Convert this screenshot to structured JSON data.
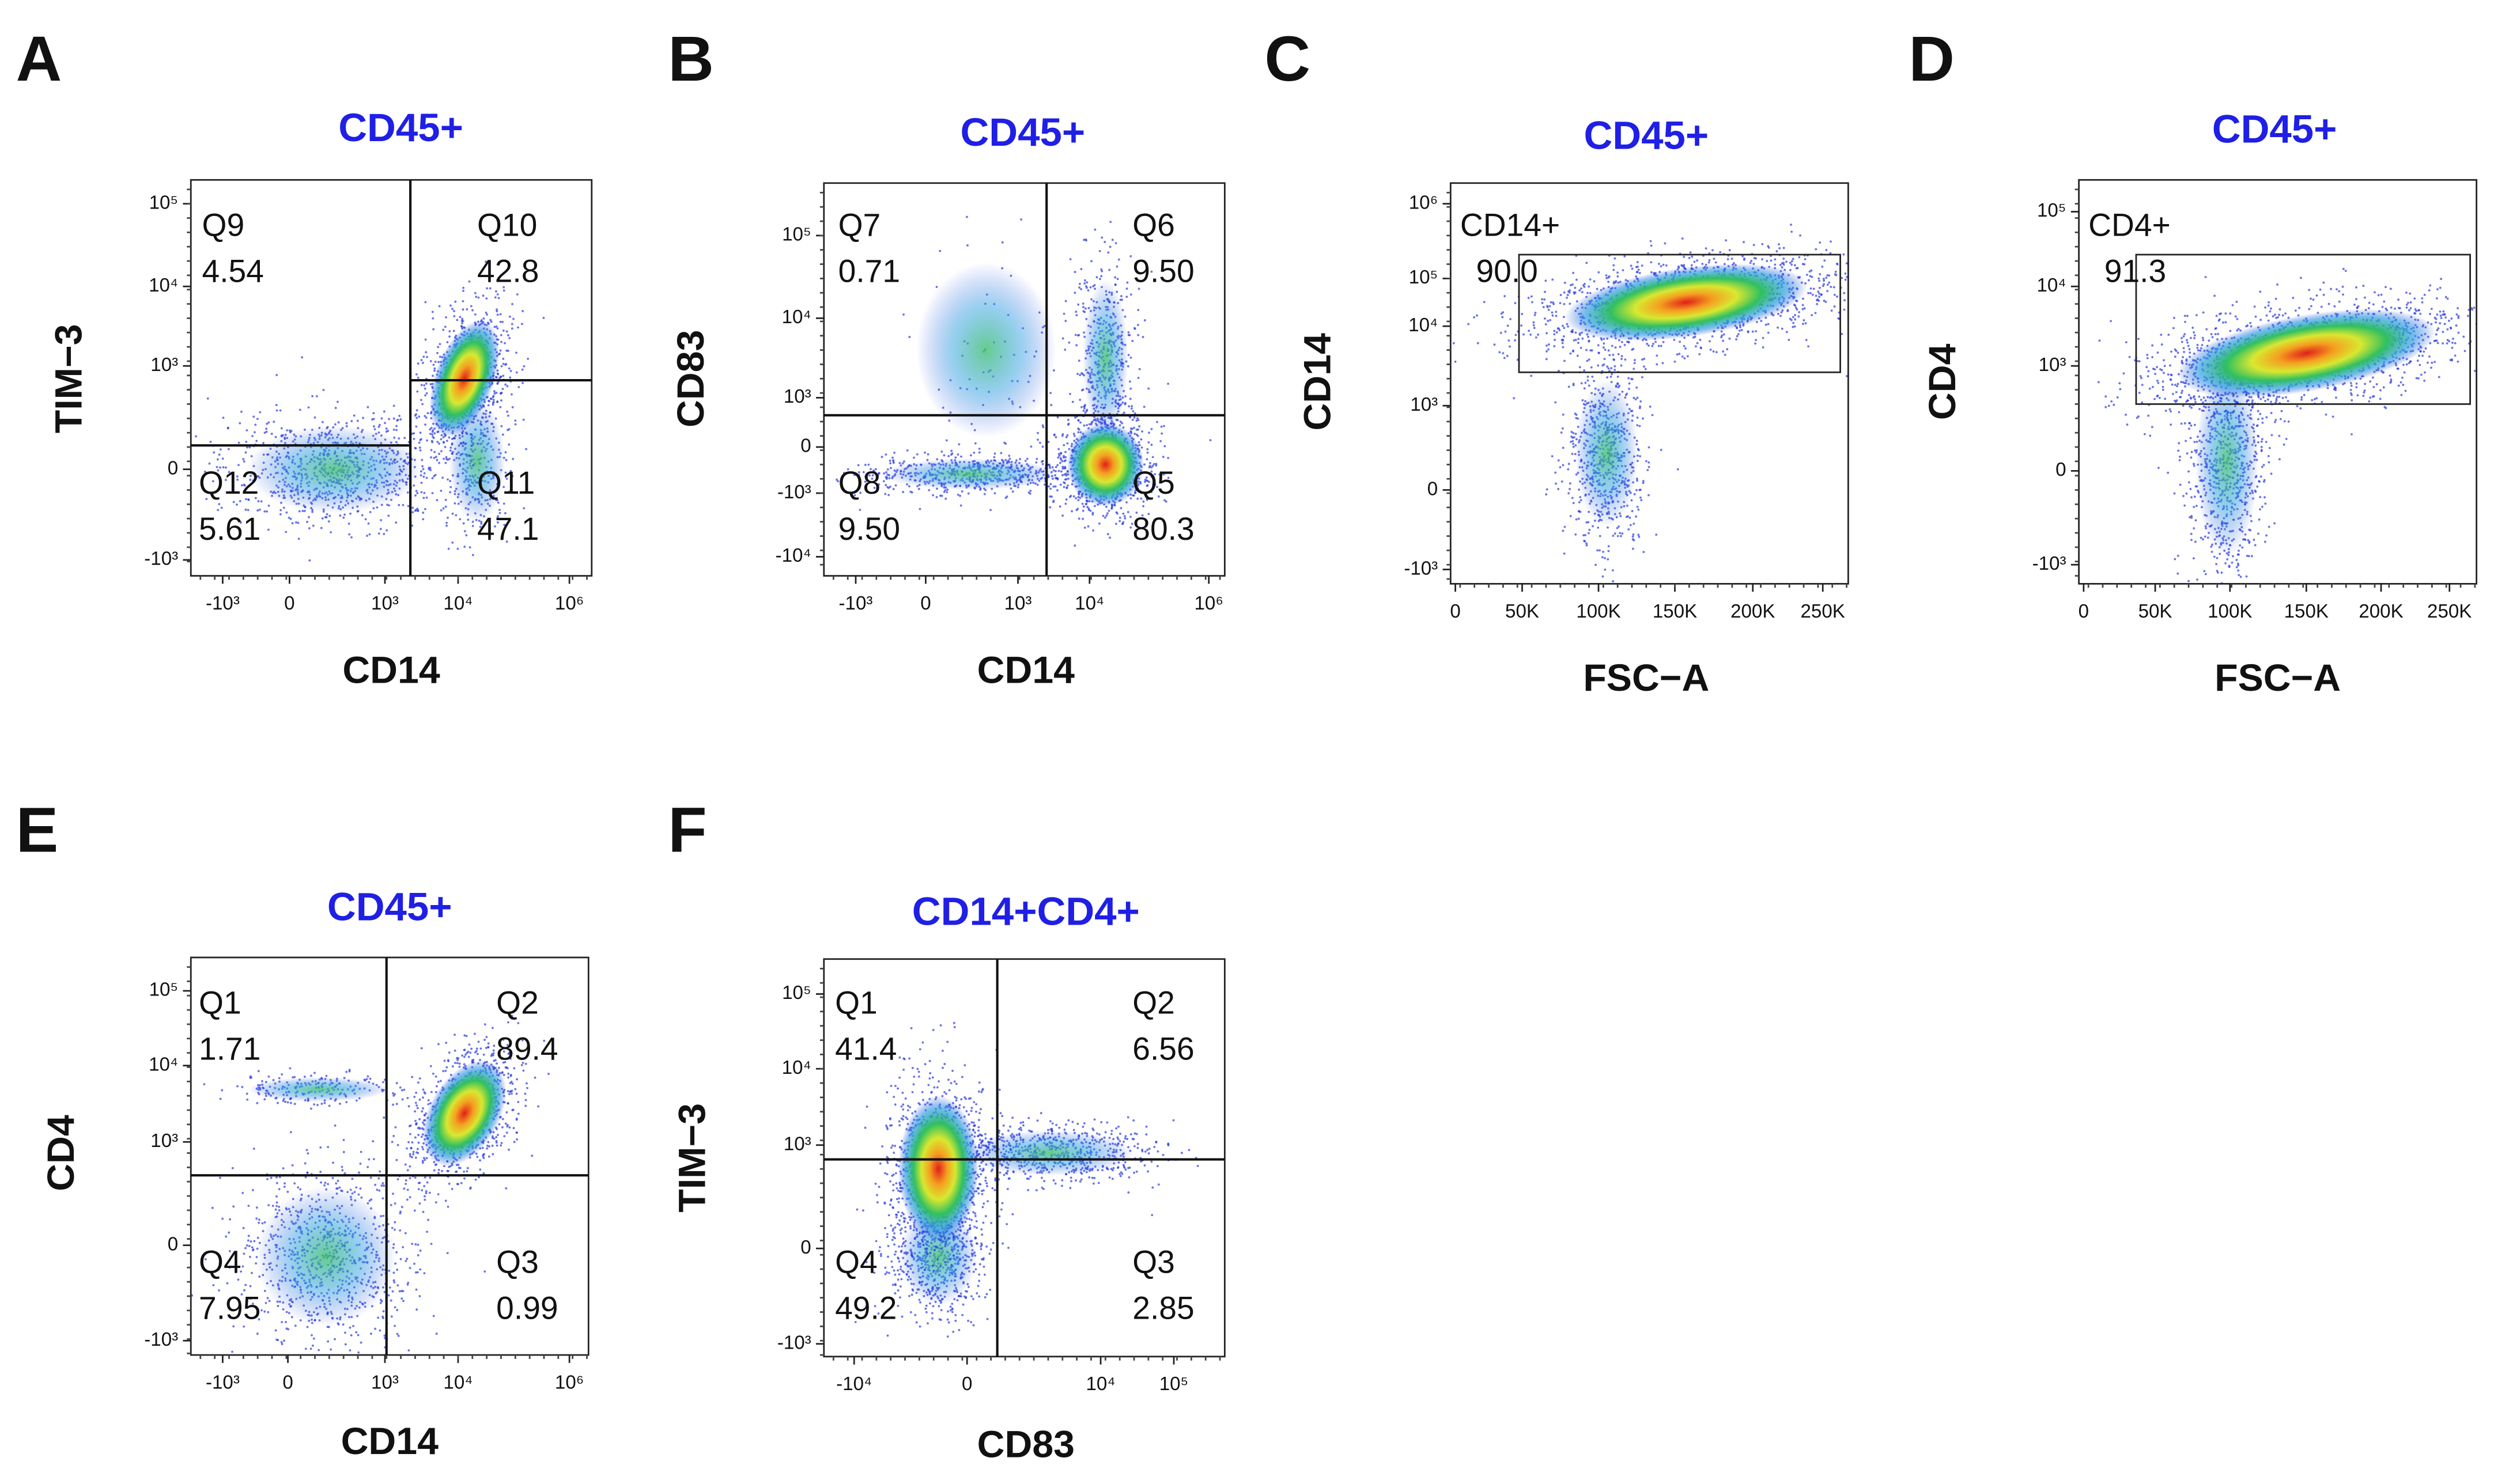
{
  "panels": [
    {
      "letter": "A",
      "title": "CD45+",
      "x_label": "CD14",
      "y_label": "TIM−3",
      "x_ticks": [
        "-10³",
        "0",
        "10³",
        "10⁴",
        "10⁶"
      ],
      "y_ticks": [
        "10⁵",
        "10⁴",
        "10³",
        "0",
        "-10³"
      ],
      "gates": [
        {
          "name": "Q9",
          "percent": "4.54"
        },
        {
          "name": "Q10",
          "percent": "42.8"
        },
        {
          "name": "Q12",
          "percent": "5.61"
        },
        {
          "name": "Q11",
          "percent": "47.1"
        }
      ]
    },
    {
      "letter": "B",
      "title": "CD45+",
      "x_label": "CD14",
      "y_label": "CD83",
      "x_ticks": [
        "-10³",
        "0",
        "10³",
        "10⁴",
        "10⁶"
      ],
      "y_ticks": [
        "10⁵",
        "10⁴",
        "10³",
        "0",
        "-10³",
        "-10⁴"
      ],
      "gates": [
        {
          "name": "Q7",
          "percent": "0.71"
        },
        {
          "name": "Q6",
          "percent": "9.50"
        },
        {
          "name": "Q8",
          "percent": "9.50"
        },
        {
          "name": "Q5",
          "percent": "80.3"
        }
      ]
    },
    {
      "letter": "C",
      "title": "CD45+",
      "x_label": "FSC−A",
      "y_label": "CD14",
      "x_ticks": [
        "0",
        "50K",
        "100K",
        "150K",
        "200K",
        "250K"
      ],
      "y_ticks": [
        "10⁶",
        "10⁵",
        "10⁴",
        "10³",
        "0",
        "-10³"
      ],
      "gates": [
        {
          "name": "CD14+",
          "percent": "90.0"
        }
      ]
    },
    {
      "letter": "D",
      "title": "CD45+",
      "x_label": "FSC−A",
      "y_label": "CD4",
      "x_ticks": [
        "0",
        "50K",
        "100K",
        "150K",
        "200K",
        "250K"
      ],
      "y_ticks": [
        "10⁵",
        "10⁴",
        "10³",
        "0",
        "-10³"
      ],
      "gates": [
        {
          "name": "CD4+",
          "percent": "91.3"
        }
      ]
    },
    {
      "letter": "E",
      "title": "CD45+",
      "x_label": "CD14",
      "y_label": "CD4",
      "x_ticks": [
        "-10³",
        "0",
        "10³",
        "10⁴",
        "10⁶"
      ],
      "y_ticks": [
        "10⁵",
        "10⁴",
        "10³",
        "0",
        "-10³"
      ],
      "gates": [
        {
          "name": "Q1",
          "percent": "1.71"
        },
        {
          "name": "Q2",
          "percent": "89.4"
        },
        {
          "name": "Q4",
          "percent": "7.95"
        },
        {
          "name": "Q3",
          "percent": "0.99"
        }
      ]
    },
    {
      "letter": "F",
      "title": "CD14+CD4+",
      "x_label": "CD83",
      "y_label": "TIM−3",
      "x_ticks": [
        "-10⁴",
        "0",
        "10⁴",
        "10⁵"
      ],
      "y_ticks": [
        "10⁵",
        "10⁴",
        "10³",
        "0",
        "-10³"
      ],
      "gates": [
        {
          "name": "Q1",
          "percent": "41.4"
        },
        {
          "name": "Q2",
          "percent": "6.56"
        },
        {
          "name": "Q4",
          "percent": "49.2"
        },
        {
          "name": "Q3",
          "percent": "2.85"
        }
      ]
    }
  ]
}
